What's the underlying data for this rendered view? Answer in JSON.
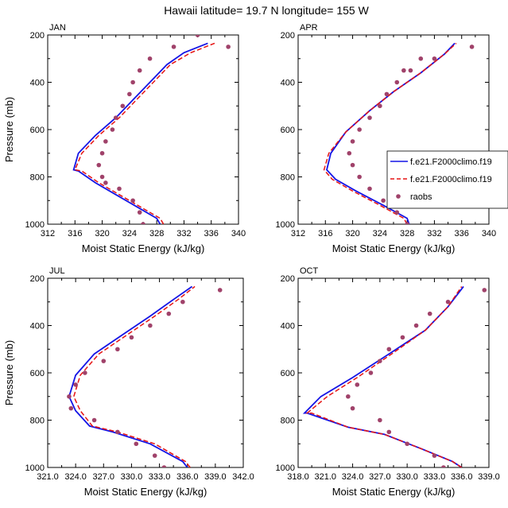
{
  "figure_title": "Hawaii  latitude= 19.7 N longitude= 155 W",
  "colors": {
    "model1": "#1414e6",
    "model2": "#e61414",
    "raobs": "#a0426a"
  },
  "legend": [
    {
      "label": "f.e21.F2000climo.f19",
      "style": "solid",
      "color": "#1414e6"
    },
    {
      "label": "f.e21.F2000climo.f19",
      "style": "dashed",
      "color": "#e61414"
    },
    {
      "label": "raobs",
      "style": "dot",
      "color": "#a0426a"
    }
  ],
  "chart_data": [
    {
      "type": "line",
      "title": "JAN",
      "xlabel": "Moist Static Energy (kJ/kg)",
      "ylabel": "Pressure (mb)",
      "xlim": [
        312,
        340
      ],
      "ylim": [
        200,
        1000
      ],
      "xticks": [
        312,
        316,
        320,
        324,
        328,
        332,
        336,
        340
      ],
      "xtick_labels": [
        "312",
        "316",
        "320",
        "324",
        "328",
        "332",
        "336",
        "340"
      ],
      "yticks": [
        200,
        400,
        600,
        800,
        1000
      ],
      "ytick_labels": [
        "200",
        "400",
        "600",
        "800",
        "1000"
      ],
      "show_ylabel": true,
      "show_legend": false,
      "series": [
        {
          "name": "f.e21.F2000climo.f19 (solid)",
          "x": [
            328.5,
            328.0,
            325.0,
            322.0,
            319.0,
            316.5,
            315.8,
            316.5,
            319.0,
            322.0,
            324.5,
            327.0,
            329.5,
            332.0,
            335.5
          ],
          "y": [
            1000,
            975,
            925,
            875,
            825,
            775,
            770,
            700,
            625,
            550,
            475,
            400,
            325,
            275,
            235
          ]
        },
        {
          "name": "f.e21.F2000climo.f19 (dashed)",
          "x": [
            329.0,
            328.5,
            325.5,
            322.5,
            319.5,
            317.0,
            316.0,
            317.0,
            319.5,
            322.5,
            325.0,
            327.5,
            330.0,
            333.0,
            336.5
          ],
          "y": [
            1000,
            975,
            925,
            875,
            825,
            775,
            770,
            700,
            625,
            550,
            475,
            400,
            325,
            275,
            235
          ]
        },
        {
          "name": "raobs",
          "x": [
            326.0,
            325.5,
            324.5,
            322.5,
            320.5,
            320.0,
            319.5,
            320.0,
            320.5,
            321.5,
            322.0,
            323.0,
            324.0,
            324.5,
            325.5,
            327.0,
            330.5,
            334.0,
            338.5
          ],
          "y": [
            1000,
            950,
            900,
            850,
            825,
            800,
            750,
            700,
            650,
            600,
            550,
            500,
            450,
            400,
            350,
            300,
            250,
            200,
            250
          ]
        }
      ]
    },
    {
      "type": "line",
      "title": "APR",
      "xlabel": "Moist Static Energy (kJ/kg)",
      "ylabel": "Pressure (mb)",
      "xlim": [
        312,
        340
      ],
      "ylim": [
        200,
        1000
      ],
      "xticks": [
        312,
        316,
        320,
        324,
        328,
        332,
        336,
        340
      ],
      "xtick_labels": [
        "312",
        "316",
        "320",
        "324",
        "328",
        "332",
        "336",
        "340"
      ],
      "yticks": [
        200,
        400,
        600,
        800,
        1000
      ],
      "ytick_labels": [
        "200",
        "400",
        "600",
        "800",
        "1000"
      ],
      "show_ylabel": false,
      "show_legend": true,
      "series": [
        {
          "name": "f.e21.F2000climo.f19 (solid)",
          "x": [
            328.3,
            328.0,
            324.5,
            320.5,
            317.5,
            316.2,
            316.8,
            319.0,
            322.5,
            326.0,
            330.0,
            333.5,
            335.0
          ],
          "y": [
            1000,
            975,
            920,
            860,
            810,
            770,
            700,
            610,
            520,
            440,
            360,
            280,
            235
          ]
        },
        {
          "name": "f.e21.F2000climo.f19 (dashed)",
          "x": [
            328.0,
            327.5,
            324.0,
            320.0,
            317.0,
            315.8,
            316.5,
            319.0,
            322.5,
            326.0,
            330.0,
            333.5,
            335.2
          ],
          "y": [
            1000,
            975,
            920,
            860,
            810,
            770,
            700,
            610,
            520,
            440,
            360,
            280,
            235
          ]
        },
        {
          "name": "raobs",
          "x": [
            328.0,
            326.5,
            324.5,
            322.5,
            321.0,
            320.0,
            319.5,
            320.0,
            321.0,
            322.5,
            324.0,
            325.0,
            326.5,
            327.5,
            328.5,
            330.0,
            332.0,
            337.5
          ],
          "y": [
            1000,
            950,
            900,
            850,
            800,
            750,
            700,
            650,
            600,
            550,
            500,
            450,
            400,
            350,
            350,
            300,
            300,
            250
          ]
        }
      ]
    },
    {
      "type": "line",
      "title": "JUL",
      "xlabel": "Moist Static Energy (kJ/kg)",
      "ylabel": "Pressure (mb)",
      "xlim": [
        321,
        342
      ],
      "ylim": [
        200,
        1000
      ],
      "xticks": [
        321,
        324,
        327,
        330,
        333,
        336,
        339,
        342
      ],
      "xtick_labels": [
        "321.0",
        "324.0",
        "327.0",
        "330.0",
        "333.0",
        "336.0",
        "339.0",
        "342.0"
      ],
      "yticks": [
        200,
        400,
        600,
        800,
        1000
      ],
      "ytick_labels": [
        "200",
        "400",
        "600",
        "800",
        "1000"
      ],
      "show_ylabel": true,
      "show_legend": false,
      "series": [
        {
          "name": "f.e21.F2000climo.f19 (solid)",
          "x": [
            336.0,
            335.5,
            332.0,
            328.0,
            325.5,
            324.0,
            323.3,
            324.0,
            326.0,
            329.0,
            332.0,
            334.5,
            336.5
          ],
          "y": [
            1000,
            975,
            900,
            850,
            825,
            760,
            700,
            610,
            520,
            440,
            360,
            290,
            235
          ]
        },
        {
          "name": "f.e21.F2000climo.f19 (dashed)",
          "x": [
            336.3,
            335.8,
            332.5,
            328.5,
            325.8,
            324.5,
            323.8,
            324.5,
            326.5,
            329.5,
            332.5,
            335.0,
            336.8
          ],
          "y": [
            1000,
            975,
            900,
            850,
            825,
            760,
            700,
            610,
            520,
            440,
            360,
            290,
            235
          ]
        },
        {
          "name": "raobs",
          "x": [
            333.5,
            332.5,
            330.5,
            328.5,
            326.0,
            323.5,
            323.3,
            324.0,
            325.0,
            327.0,
            328.5,
            330.0,
            332.0,
            334.0,
            335.5,
            339.5
          ],
          "y": [
            1000,
            950,
            900,
            850,
            800,
            750,
            700,
            650,
            600,
            550,
            500,
            450,
            400,
            350,
            300,
            250
          ]
        }
      ]
    },
    {
      "type": "line",
      "title": "OCT",
      "xlabel": "Moist Static Energy (kJ/kg)",
      "ylabel": "Pressure (mb)",
      "xlim": [
        318,
        339
      ],
      "ylim": [
        200,
        1000
      ],
      "xticks": [
        318,
        321,
        324,
        327,
        330,
        333,
        336,
        339
      ],
      "xtick_labels": [
        "318.0",
        "321.0",
        "324.0",
        "327.0",
        "330.0",
        "333.0",
        "336.0",
        "339.0"
      ],
      "yticks": [
        200,
        400,
        600,
        800,
        1000
      ],
      "ytick_labels": [
        "200",
        "400",
        "600",
        "800",
        "1000"
      ],
      "show_ylabel": false,
      "show_legend": false,
      "series": [
        {
          "name": "f.e21.F2000climo.f19 (solid)",
          "x": [
            336.0,
            335.0,
            331.5,
            327.5,
            323.5,
            319.0,
            318.7,
            320.5,
            324.0,
            328.0,
            332.0,
            334.5,
            336.2
          ],
          "y": [
            1000,
            975,
            920,
            860,
            830,
            770,
            770,
            700,
            620,
            520,
            420,
            320,
            235
          ]
        },
        {
          "name": "f.e21.F2000climo.f19 (dashed)",
          "x": [
            336.0,
            335.0,
            331.5,
            327.5,
            323.5,
            319.5,
            319.0,
            321.2,
            324.5,
            328.3,
            332.0,
            334.5,
            336.0
          ],
          "y": [
            1000,
            975,
            920,
            860,
            830,
            770,
            770,
            700,
            620,
            520,
            420,
            320,
            235
          ]
        },
        {
          "name": "raobs",
          "x": [
            334.0,
            333.0,
            330.0,
            328.0,
            327.0,
            324.0,
            323.5,
            324.5,
            326.0,
            327.0,
            328.0,
            329.5,
            331.0,
            332.5,
            334.5,
            338.5
          ],
          "y": [
            1000,
            950,
            900,
            850,
            800,
            750,
            700,
            650,
            600,
            550,
            500,
            450,
            400,
            350,
            300,
            250
          ]
        }
      ]
    }
  ]
}
